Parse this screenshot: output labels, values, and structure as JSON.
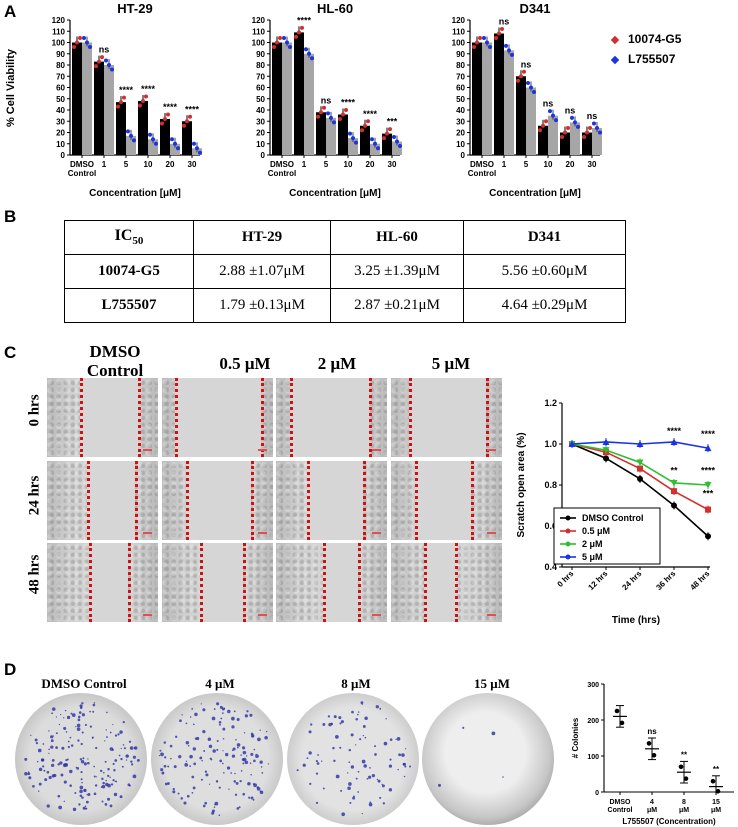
{
  "panels": {
    "a": "A",
    "b": "B",
    "c": "C",
    "d": "D"
  },
  "colors": {
    "red": "#d32f2f",
    "blue": "#1a33e6",
    "bar_black": "#000000",
    "bar_gray": "#a6a6a6"
  },
  "panelA": {
    "ylabel": "% Cell Viability",
    "xlabel": "Concentration [μM]",
    "legend": [
      "10074-G5",
      "L755507"
    ],
    "yticks": [
      "0",
      "10",
      "20",
      "30",
      "40",
      "50",
      "60",
      "70",
      "80",
      "90",
      "100",
      "110",
      "120"
    ],
    "xticks": [
      [
        "DMSO",
        "Control"
      ],
      [
        "1"
      ],
      [
        "5"
      ],
      [
        "10"
      ],
      [
        "20"
      ],
      [
        "30"
      ]
    ]
  },
  "chart_data": [
    {
      "type": "bar",
      "title": "HT-29",
      "xlabel": "Concentration [μM]",
      "ylabel": "% Cell Viability",
      "ylim": [
        0,
        120
      ],
      "categories": [
        "DMSO Control",
        "1",
        "5",
        "10",
        "20",
        "30"
      ],
      "series": [
        {
          "name": "10074-G5",
          "values": [
            100,
            83,
            47,
            48,
            32,
            30
          ]
        },
        {
          "name": "L755507",
          "values": [
            100,
            80,
            17,
            14,
            10,
            6
          ]
        }
      ],
      "annotations": [
        "",
        "ns",
        "****",
        "****",
        "****",
        "****"
      ]
    },
    {
      "type": "bar",
      "title": "HL-60",
      "xlabel": "Concentration [μM]",
      "ylabel": "% Cell Viability",
      "ylim": [
        0,
        120
      ],
      "categories": [
        "DMSO Control",
        "1",
        "5",
        "10",
        "20",
        "30"
      ],
      "series": [
        {
          "name": "10074-G5",
          "values": [
            100,
            109,
            38,
            36,
            26,
            19
          ]
        },
        {
          "name": "L755507",
          "values": [
            100,
            90,
            33,
            15,
            10,
            12
          ]
        }
      ],
      "annotations": [
        "",
        "****",
        "ns",
        "****",
        "****",
        "***"
      ]
    },
    {
      "type": "bar",
      "title": "D341",
      "xlabel": "Concentration [μM]",
      "ylabel": "% Cell Viability",
      "ylim": [
        0,
        120
      ],
      "categories": [
        "DMSO Control",
        "1",
        "5",
        "10",
        "20",
        "30"
      ],
      "series": [
        {
          "name": "10074-G5",
          "values": [
            100,
            108,
            70,
            26,
            20,
            20
          ]
        },
        {
          "name": "L755507",
          "values": [
            100,
            93,
            60,
            35,
            29,
            24
          ]
        }
      ],
      "annotations": [
        "",
        "ns",
        "ns",
        "ns",
        "ns",
        "ns"
      ]
    },
    {
      "type": "line",
      "title": "",
      "xlabel": "Time (hrs)",
      "ylabel": "Scratch open area (%)",
      "ylim": [
        0.4,
        1.2
      ],
      "categories": [
        "0 hrs",
        "12 hrs",
        "24 hrs",
        "36 hrs",
        "48 hrs"
      ],
      "yticks": [
        "0.4",
        "0.6",
        "0.8",
        "1.0",
        "1.2"
      ],
      "series": [
        {
          "name": "DMSO Control",
          "color": "#000000",
          "values": [
            1.0,
            0.93,
            0.83,
            0.7,
            0.55
          ]
        },
        {
          "name": "0.5 μM",
          "color": "#d32f2f",
          "values": [
            1.0,
            0.96,
            0.88,
            0.77,
            0.68
          ]
        },
        {
          "name": "2 μM",
          "color": "#2fbf2f",
          "values": [
            1.0,
            0.97,
            0.91,
            0.81,
            0.8
          ]
        },
        {
          "name": "5 μM",
          "color": "#1a33e6",
          "values": [
            1.0,
            1.01,
            1.0,
            1.01,
            0.98
          ]
        }
      ],
      "annotations": [
        {
          "category": "36 hrs",
          "texts": [
            "****",
            "**"
          ]
        },
        {
          "category": "48 hrs",
          "texts": [
            "****",
            "****",
            "***"
          ]
        }
      ]
    },
    {
      "type": "scatter",
      "title": "",
      "xlabel": "L755507 (Concentration)",
      "ylabel": "# Colonies",
      "ylim": [
        0,
        300
      ],
      "categories": [
        [
          "DMSO",
          "Control"
        ],
        [
          "4",
          "μM"
        ],
        [
          "8",
          "μM"
        ],
        [
          "15",
          "μM"
        ]
      ],
      "yticks": [
        "0",
        "100",
        "200",
        "300"
      ],
      "means": [
        210,
        120,
        55,
        15
      ],
      "annotations": [
        "",
        "ns",
        "**",
        "**"
      ]
    }
  ],
  "panelB": {
    "headers": [
      "IC50",
      "HT-29",
      "HL-60",
      "D341"
    ],
    "header_sub": "50",
    "header_main": "IC",
    "rows": [
      {
        "label": "10074-G5",
        "values": [
          "2.88 ±1.07μM",
          "3.25 ±1.39μM",
          "5.56 ±0.60μM"
        ]
      },
      {
        "label": "L755507",
        "values": [
          "1.79 ±0.13μM",
          "2.87 ±0.21μM",
          "4.64 ±0.29μM"
        ]
      }
    ]
  },
  "panelC": {
    "conditions": [
      "DMSO Control",
      "0.5  μM",
      "2 μM",
      "5 μM"
    ],
    "condition_lines": [
      [
        "DMSO",
        "Control"
      ],
      [
        "0.5  μM"
      ],
      [
        "2 μM"
      ],
      [
        "5 μM"
      ]
    ],
    "times": [
      "0 hrs",
      "24 hrs",
      "48 hrs"
    ]
  },
  "panelD": {
    "dishes": [
      "DMSO Control",
      "4 μM",
      "8 μM",
      "15 μM"
    ]
  }
}
